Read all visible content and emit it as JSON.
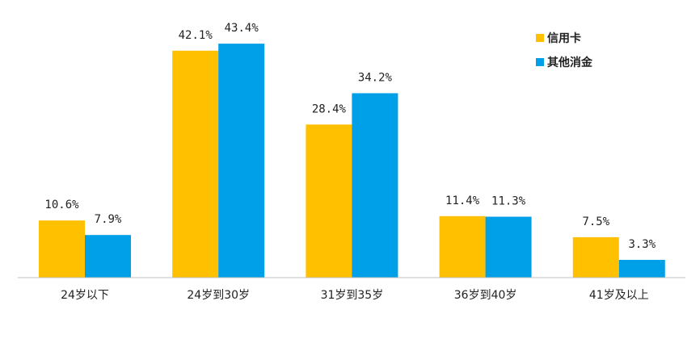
{
  "chart_data": {
    "type": "bar",
    "categories": [
      "24岁以下",
      "24岁到30岁",
      "31岁到35岁",
      "36岁到40岁",
      "41岁及以上"
    ],
    "series": [
      {
        "name": "信用卡",
        "values": [
          10.6,
          42.1,
          28.4,
          11.4,
          7.5
        ],
        "labels": [
          "10.6%",
          "42.1%",
          "28.4%",
          "11.4%",
          "7.5%"
        ],
        "color": "#FFC000"
      },
      {
        "name": "其他消金",
        "values": [
          7.9,
          43.4,
          34.2,
          11.3,
          3.3
        ],
        "labels": [
          "7.9%",
          "43.4%",
          "34.2%",
          "11.3%",
          "3.3%"
        ],
        "color": "#00A0E9"
      }
    ],
    "ylim": [
      0,
      50
    ],
    "grid": false,
    "legend_position": "top-right",
    "title": "",
    "xlabel": "",
    "ylabel": ""
  }
}
